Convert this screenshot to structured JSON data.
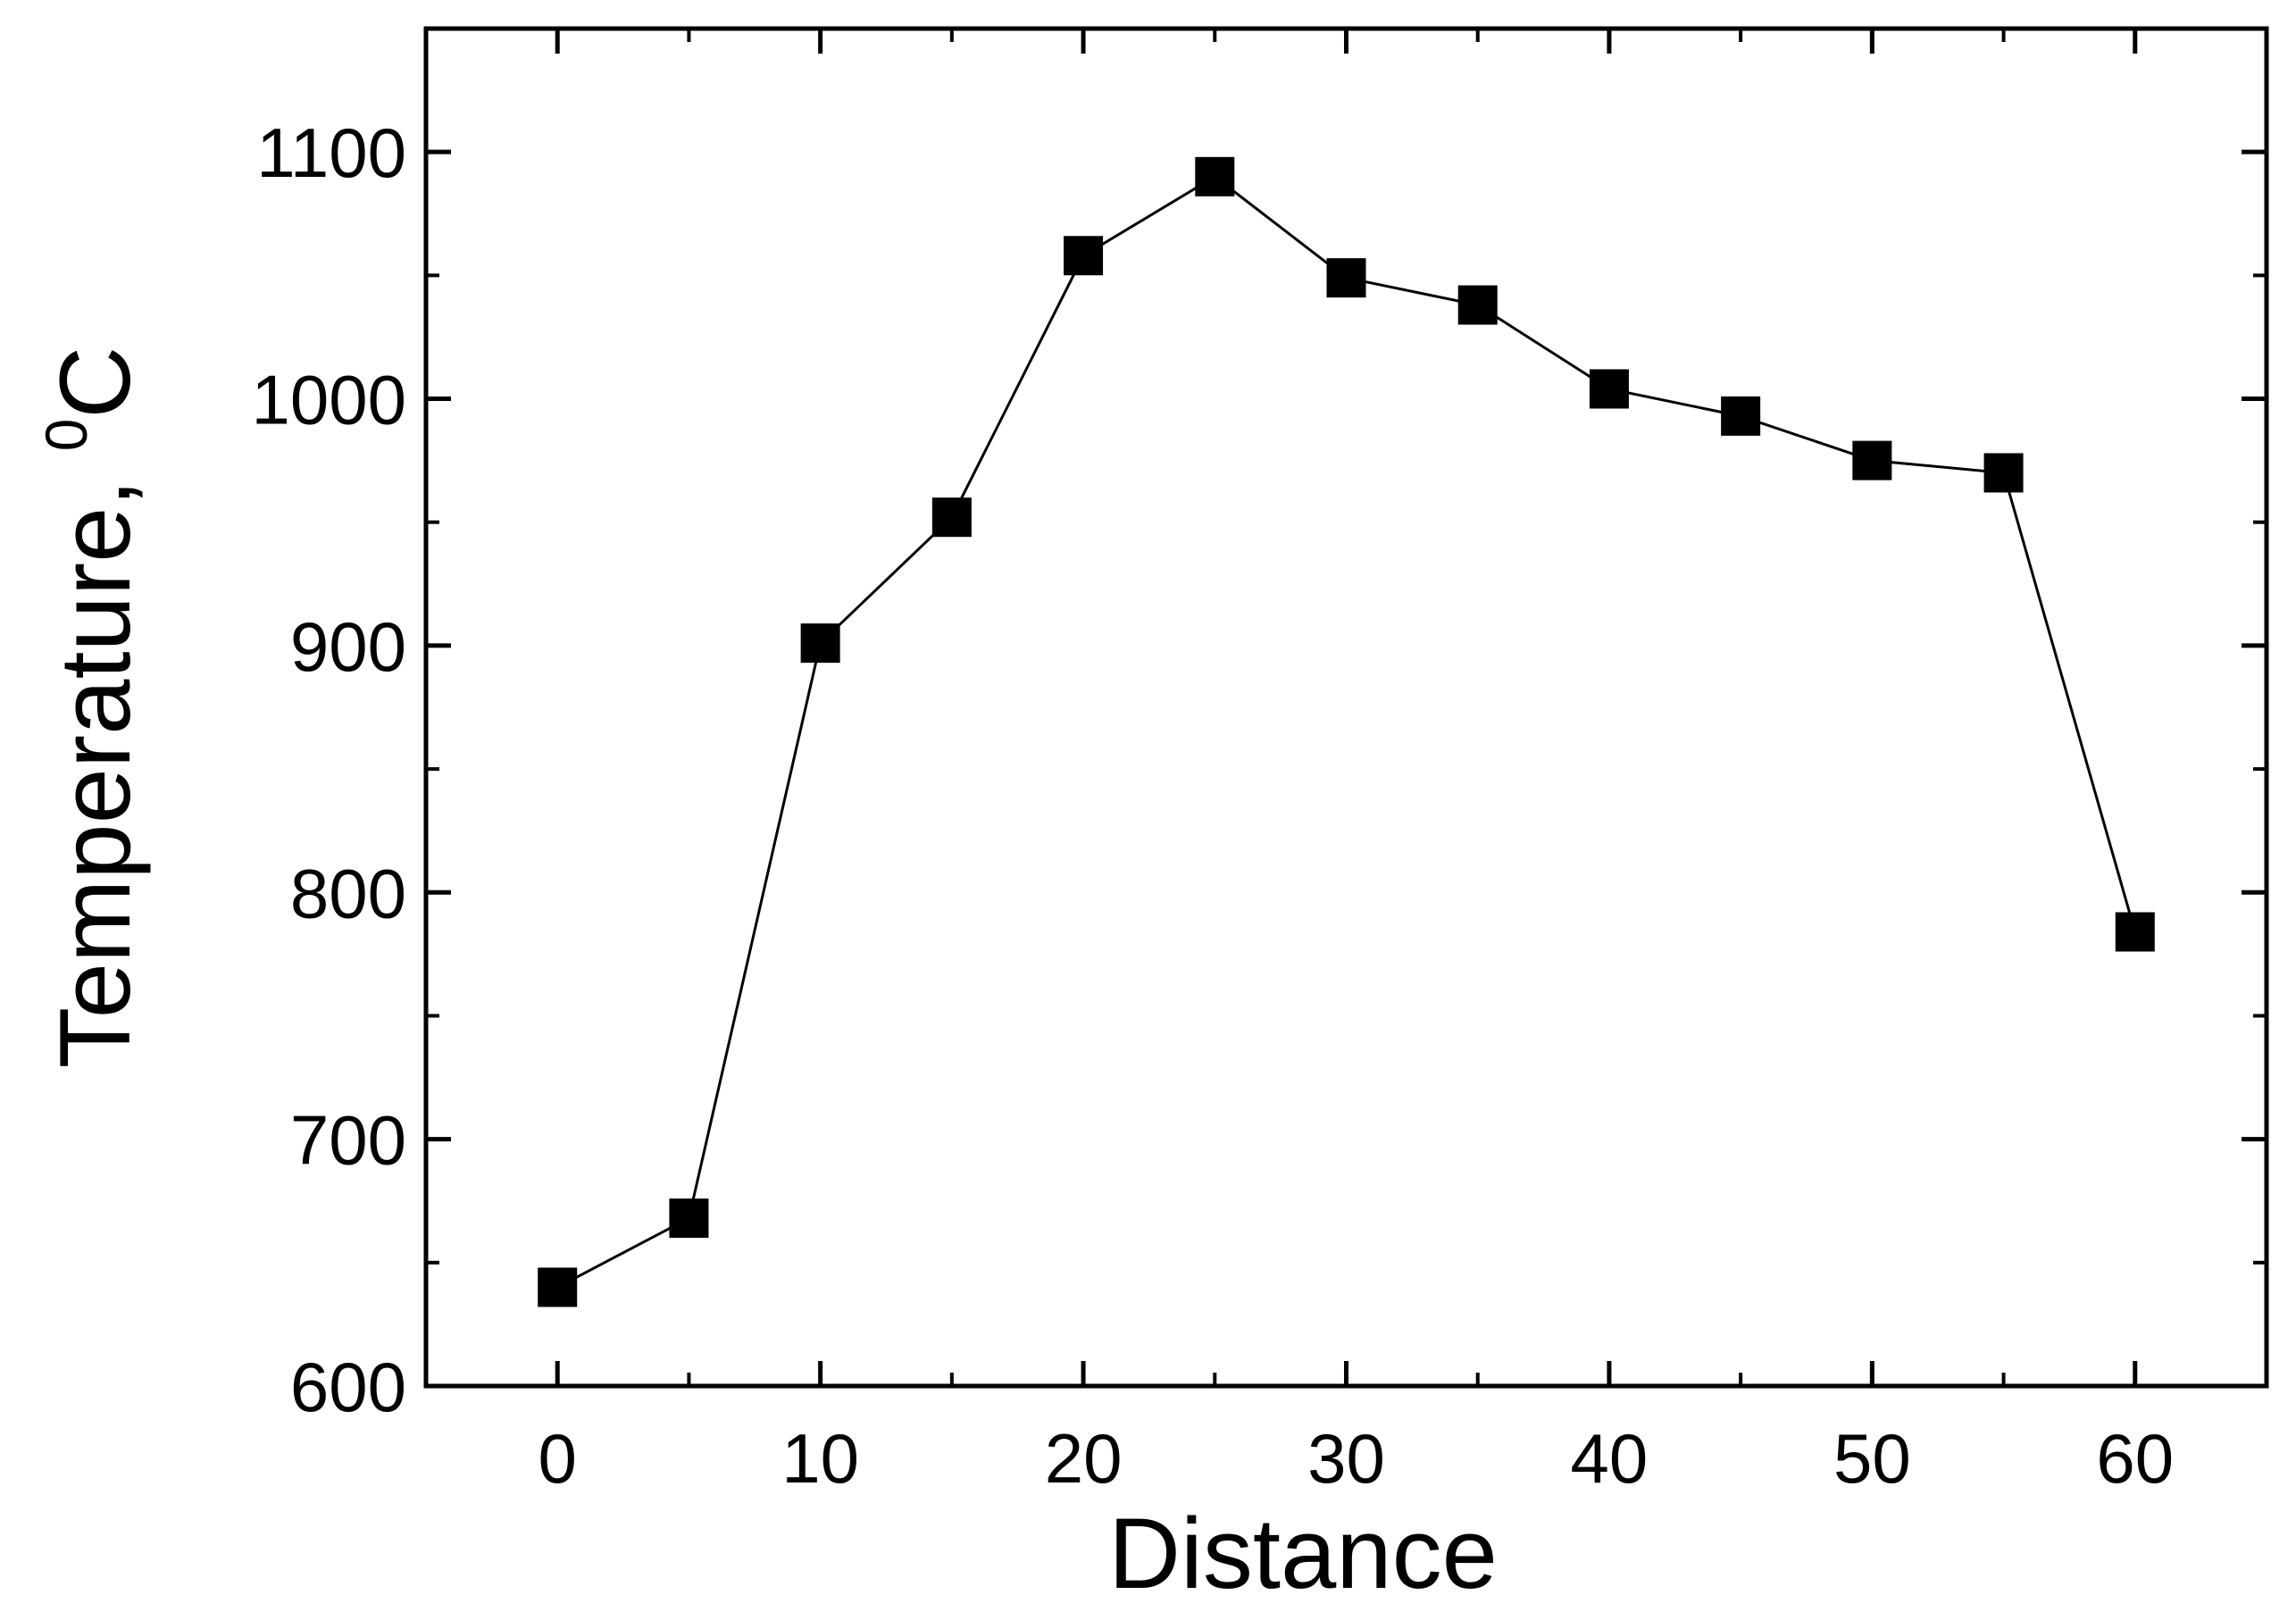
{
  "chart_data": {
    "type": "line",
    "title": "",
    "xlabel": "Distance",
    "ylabel": "Temperature, ",
    "ylabel_superscript": "0",
    "ylabel_unit": "C",
    "xlim": [
      -5,
      65
    ],
    "ylim": [
      600,
      1150
    ],
    "xticks": [
      0,
      10,
      20,
      30,
      40,
      50,
      60
    ],
    "yticks": [
      600,
      700,
      800,
      900,
      1000,
      1100
    ],
    "x_minor_step": 5,
    "y_minor_step": 50,
    "grid": false,
    "marker": "filled-square",
    "color": "#000000",
    "x": [
      0,
      5,
      10,
      15,
      20,
      25,
      30,
      35,
      40,
      45,
      50,
      55,
      60
    ],
    "series": [
      {
        "values": [
          640,
          668,
          901,
          952,
          1058,
          1090,
          1049,
          1038,
          1004,
          993,
          975,
          970,
          784
        ]
      }
    ]
  }
}
